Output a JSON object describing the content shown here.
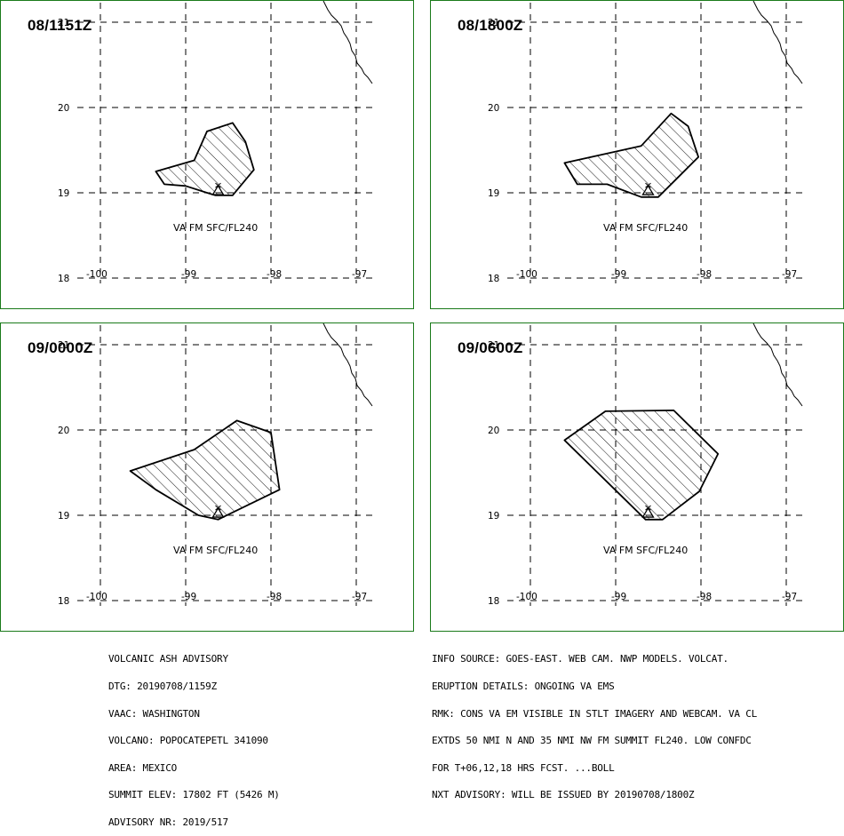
{
  "colors": {
    "border": "#1a7a1a",
    "line": "#000000",
    "background": "#ffffff"
  },
  "lon_ticks": [
    "-100",
    "-99",
    "-98",
    "-97"
  ],
  "lat_ticks": [
    "21",
    "20",
    "19",
    "18"
  ],
  "volcano_marker": {
    "lat": 19.02,
    "lon": -98.62
  },
  "panels": [
    {
      "time": "08/1151Z",
      "label": "VA FM SFC/FL240",
      "polygon": [
        [
          -99.35,
          19.25
        ],
        [
          -99.25,
          19.1
        ],
        [
          -99.0,
          19.08
        ],
        [
          -98.75,
          19.0
        ],
        [
          -98.65,
          18.97
        ],
        [
          -98.45,
          18.97
        ],
        [
          -98.2,
          19.27
        ],
        [
          -98.3,
          19.6
        ],
        [
          -98.45,
          19.82
        ],
        [
          -98.75,
          19.72
        ],
        [
          -98.9,
          19.38
        ],
        [
          -99.35,
          19.25
        ]
      ]
    },
    {
      "time": "08/1800Z",
      "label": "VA FM SFC/FL240",
      "polygon": [
        [
          -99.6,
          19.35
        ],
        [
          -99.45,
          19.1
        ],
        [
          -99.1,
          19.1
        ],
        [
          -98.7,
          18.95
        ],
        [
          -98.5,
          18.95
        ],
        [
          -98.03,
          19.42
        ],
        [
          -98.15,
          19.78
        ],
        [
          -98.35,
          19.93
        ],
        [
          -98.7,
          19.55
        ],
        [
          -99.6,
          19.35
        ]
      ]
    },
    {
      "time": "09/0000Z",
      "label": "VA FM SFC/FL240",
      "polygon": [
        [
          -99.65,
          19.52
        ],
        [
          -99.35,
          19.3
        ],
        [
          -98.85,
          19.0
        ],
        [
          -98.62,
          18.95
        ],
        [
          -97.9,
          19.3
        ],
        [
          -98.0,
          19.97
        ],
        [
          -98.4,
          20.11
        ],
        [
          -98.9,
          19.77
        ],
        [
          -99.65,
          19.52
        ]
      ]
    },
    {
      "time": "09/0600Z",
      "label": "VA FM SFC/FL240",
      "polygon": [
        [
          -99.6,
          19.88
        ],
        [
          -99.12,
          20.22
        ],
        [
          -98.32,
          20.23
        ],
        [
          -97.8,
          19.72
        ],
        [
          -98.02,
          19.28
        ],
        [
          -98.45,
          18.95
        ],
        [
          -98.65,
          18.95
        ],
        [
          -99.6,
          19.88
        ]
      ]
    }
  ],
  "advisory_left": [
    "VOLCANIC ASH ADVISORY",
    "DTG: 20190708/1159Z",
    "VAAC: WASHINGTON",
    "VOLCANO: POPOCATEPETL 341090",
    "AREA: MEXICO",
    "SUMMIT ELEV: 17802 FT (5426 M)",
    "ADVISORY NR: 2019/517"
  ],
  "advisory_right": [
    "INFO SOURCE: GOES-EAST. WEB CAM. NWP MODELS. VOLCAT.",
    "ERUPTION DETAILS: ONGOING VA EMS",
    "RMK: CONS VA EM VISIBLE IN STLT IMAGERY AND WEBCAM. VA CL",
    "EXTDS 50 NMI N AND 35 NMI NW FM SUMMIT FL240. LOW CONFDC",
    "FOR T+06,12,18 HRS FCST. ...BOLL",
    "NXT ADVISORY: WILL BE ISSUED BY 20190708/1800Z"
  ]
}
